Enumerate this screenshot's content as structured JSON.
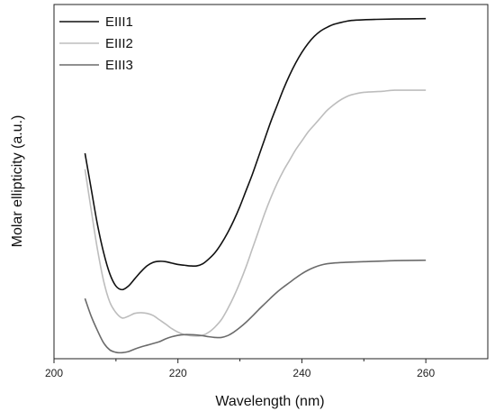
{
  "chart_data": {
    "type": "line",
    "xlabel": "Wavelength (nm)",
    "ylabel": "Molar ellipticity (a.u.)",
    "xlim": [
      200,
      270
    ],
    "x_ticks": [
      200,
      220,
      240,
      260
    ],
    "y_ticks_shown": false,
    "grid": false,
    "legend_position": "top-left",
    "series": [
      {
        "name": "EIII1",
        "color": "#111111",
        "points": [
          [
            205,
            0.58
          ],
          [
            206,
            0.48
          ],
          [
            207,
            0.38
          ],
          [
            208,
            0.3
          ],
          [
            209,
            0.24
          ],
          [
            210,
            0.205
          ],
          [
            211,
            0.195
          ],
          [
            212,
            0.205
          ],
          [
            213,
            0.225
          ],
          [
            214,
            0.245
          ],
          [
            215,
            0.262
          ],
          [
            216,
            0.272
          ],
          [
            217,
            0.275
          ],
          [
            218,
            0.274
          ],
          [
            219,
            0.27
          ],
          [
            220,
            0.266
          ],
          [
            221,
            0.264
          ],
          [
            222,
            0.262
          ],
          [
            223,
            0.262
          ],
          [
            224,
            0.268
          ],
          [
            225,
            0.282
          ],
          [
            226,
            0.3
          ],
          [
            227,
            0.325
          ],
          [
            228,
            0.355
          ],
          [
            229,
            0.39
          ],
          [
            230,
            0.43
          ],
          [
            231,
            0.475
          ],
          [
            232,
            0.52
          ],
          [
            233,
            0.57
          ],
          [
            234,
            0.62
          ],
          [
            235,
            0.67
          ],
          [
            236,
            0.715
          ],
          [
            237,
            0.76
          ],
          [
            238,
            0.8
          ],
          [
            239,
            0.835
          ],
          [
            240,
            0.865
          ],
          [
            241,
            0.89
          ],
          [
            242,
            0.91
          ],
          [
            243,
            0.925
          ],
          [
            244,
            0.935
          ],
          [
            245,
            0.943
          ],
          [
            246,
            0.948
          ],
          [
            247,
            0.952
          ],
          [
            248,
            0.955
          ],
          [
            250,
            0.957
          ],
          [
            252,
            0.958
          ],
          [
            255,
            0.959
          ],
          [
            260,
            0.96
          ]
        ]
      },
      {
        "name": "EIII2",
        "color": "#bdbdbd",
        "points": [
          [
            205,
            0.535
          ],
          [
            206,
            0.42
          ],
          [
            207,
            0.31
          ],
          [
            208,
            0.22
          ],
          [
            209,
            0.16
          ],
          [
            210,
            0.13
          ],
          [
            211,
            0.115
          ],
          [
            212,
            0.12
          ],
          [
            213,
            0.128
          ],
          [
            214,
            0.13
          ],
          [
            215,
            0.128
          ],
          [
            216,
            0.122
          ],
          [
            217,
            0.11
          ],
          [
            218,
            0.098
          ],
          [
            219,
            0.085
          ],
          [
            220,
            0.075
          ],
          [
            221,
            0.068
          ],
          [
            222,
            0.065
          ],
          [
            223,
            0.064
          ],
          [
            224,
            0.066
          ],
          [
            225,
            0.075
          ],
          [
            226,
            0.09
          ],
          [
            227,
            0.11
          ],
          [
            228,
            0.14
          ],
          [
            229,
            0.175
          ],
          [
            230,
            0.215
          ],
          [
            231,
            0.26
          ],
          [
            232,
            0.31
          ],
          [
            233,
            0.36
          ],
          [
            234,
            0.41
          ],
          [
            235,
            0.455
          ],
          [
            236,
            0.495
          ],
          [
            237,
            0.53
          ],
          [
            238,
            0.56
          ],
          [
            239,
            0.59
          ],
          [
            240,
            0.615
          ],
          [
            241,
            0.64
          ],
          [
            242,
            0.66
          ],
          [
            243,
            0.68
          ],
          [
            244,
            0.7
          ],
          [
            245,
            0.715
          ],
          [
            246,
            0.728
          ],
          [
            247,
            0.738
          ],
          [
            248,
            0.745
          ],
          [
            250,
            0.752
          ],
          [
            253,
            0.755
          ],
          [
            255,
            0.758
          ],
          [
            260,
            0.758
          ]
        ]
      },
      {
        "name": "EIII3",
        "color": "#6b6b6b",
        "points": [
          [
            205,
            0.17
          ],
          [
            206,
            0.12
          ],
          [
            207,
            0.08
          ],
          [
            208,
            0.045
          ],
          [
            209,
            0.025
          ],
          [
            210,
            0.018
          ],
          [
            211,
            0.017
          ],
          [
            212,
            0.02
          ],
          [
            213,
            0.027
          ],
          [
            214,
            0.033
          ],
          [
            215,
            0.038
          ],
          [
            216,
            0.043
          ],
          [
            217,
            0.048
          ],
          [
            218,
            0.056
          ],
          [
            219,
            0.062
          ],
          [
            220,
            0.066
          ],
          [
            221,
            0.068
          ],
          [
            222,
            0.068
          ],
          [
            223,
            0.067
          ],
          [
            224,
            0.065
          ],
          [
            225,
            0.062
          ],
          [
            226,
            0.06
          ],
          [
            227,
            0.06
          ],
          [
            228,
            0.065
          ],
          [
            229,
            0.075
          ],
          [
            230,
            0.088
          ],
          [
            231,
            0.103
          ],
          [
            232,
            0.12
          ],
          [
            233,
            0.138
          ],
          [
            234,
            0.155
          ],
          [
            235,
            0.172
          ],
          [
            236,
            0.188
          ],
          [
            237,
            0.202
          ],
          [
            238,
            0.215
          ],
          [
            239,
            0.228
          ],
          [
            240,
            0.24
          ],
          [
            241,
            0.25
          ],
          [
            242,
            0.258
          ],
          [
            243,
            0.264
          ],
          [
            244,
            0.268
          ],
          [
            245,
            0.27
          ],
          [
            247,
            0.272
          ],
          [
            250,
            0.274
          ],
          [
            255,
            0.277
          ],
          [
            260,
            0.278
          ]
        ]
      }
    ]
  }
}
